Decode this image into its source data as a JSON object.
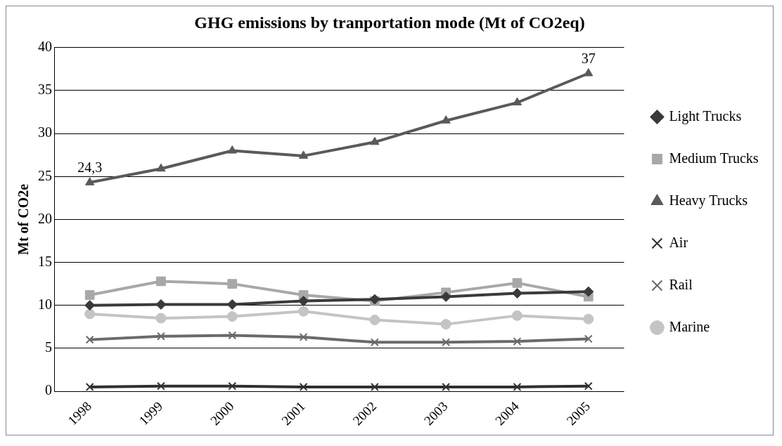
{
  "chart_data": {
    "type": "line",
    "title": "GHG emissions by tranportation mode (Mt of CO2eq)",
    "ylabel": "Mt of CO2e",
    "categories": [
      "1998",
      "1999",
      "2000",
      "2001",
      "2002",
      "2003",
      "2004",
      "2005"
    ],
    "series": [
      {
        "name": "Light Trucks",
        "color": "#3a3a3a",
        "marker": "diamond",
        "values": [
          10,
          10.1,
          10.1,
          10.5,
          10.7,
          11,
          11.4,
          11.6
        ]
      },
      {
        "name": "Medium Trucks",
        "color": "#a8a8a8",
        "marker": "square",
        "values": [
          11.2,
          12.8,
          12.5,
          11.2,
          10.5,
          11.5,
          12.6,
          11
        ]
      },
      {
        "name": "Heavy Trucks",
        "color": "#5a5a5a",
        "marker": "triangle",
        "values": [
          24.3,
          25.9,
          28,
          27.4,
          29,
          31.5,
          33.6,
          37
        ],
        "value_labels": [
          "24,3",
          null,
          null,
          null,
          null,
          null,
          null,
          "37"
        ]
      },
      {
        "name": "Air",
        "color": "#303030",
        "marker": "cross",
        "values": [
          0.5,
          0.6,
          0.6,
          0.5,
          0.5,
          0.5,
          0.5,
          0.6
        ]
      },
      {
        "name": "Rail",
        "color": "#6a6a6a",
        "marker": "cross",
        "values": [
          6,
          6.4,
          6.5,
          6.3,
          5.7,
          5.7,
          5.8,
          6.1
        ]
      },
      {
        "name": "Marine",
        "color": "#c4c4c4",
        "marker": "circle",
        "values": [
          9,
          8.5,
          8.7,
          9.3,
          8.3,
          7.8,
          8.8,
          8.4
        ]
      }
    ],
    "ylim": [
      0,
      40
    ],
    "yticks": [
      0,
      5,
      10,
      15,
      20,
      25,
      30,
      35,
      40
    ],
    "grid": "y",
    "legend": "right"
  }
}
